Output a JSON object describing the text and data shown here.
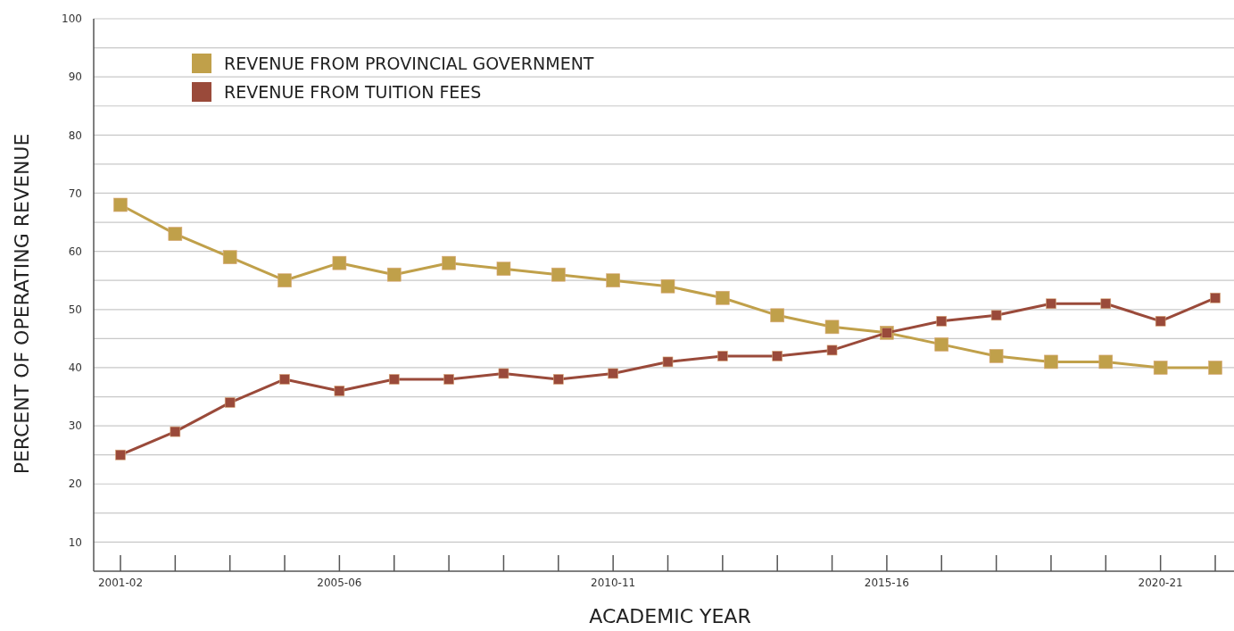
{
  "chart_data": {
    "type": "line",
    "xlabel": "ACADEMIC YEAR",
    "ylabel": "PERCENT OF OPERATING REVENUE",
    "categories": [
      "2001-02",
      null,
      null,
      null,
      "2005-06",
      null,
      null,
      null,
      null,
      "2010-11",
      null,
      null,
      null,
      null,
      "2015-16",
      null,
      null,
      null,
      null,
      "2020-21",
      null
    ],
    "series": [
      {
        "name": "REVENUE FROM PROVINCIAL GOVERNMENT",
        "color": "#c0a04a",
        "values": [
          68,
          63,
          59,
          55,
          58,
          56,
          58,
          57,
          56,
          55,
          54,
          52,
          49,
          47,
          46,
          44,
          42,
          41,
          41,
          40,
          40
        ]
      },
      {
        "name": "REVENUE FROM TUITION FEES",
        "color": "#9a4a3a",
        "values": [
          25,
          29,
          34,
          38,
          36,
          38,
          38,
          39,
          38,
          39,
          41,
          42,
          42,
          43,
          46,
          48,
          49,
          51,
          51,
          48,
          52
        ]
      }
    ],
    "ylim": [
      5,
      100
    ],
    "yticks": [
      10,
      {
        "value": 15,
        "label": null
      },
      20,
      {
        "value": 25,
        "label": null
      },
      30,
      {
        "value": 35,
        "label": null
      },
      40,
      {
        "value": 45,
        "label": null
      },
      50,
      {
        "value": 55,
        "label": null
      },
      60,
      {
        "value": 65,
        "label": null
      },
      70,
      {
        "value": 75,
        "label": null
      },
      80,
      {
        "value": 85,
        "label": null
      },
      90,
      {
        "value": 95,
        "label": null
      },
      100
    ],
    "grid": "y",
    "legend": "top left",
    "marker": "square",
    "line_style": "solid"
  }
}
